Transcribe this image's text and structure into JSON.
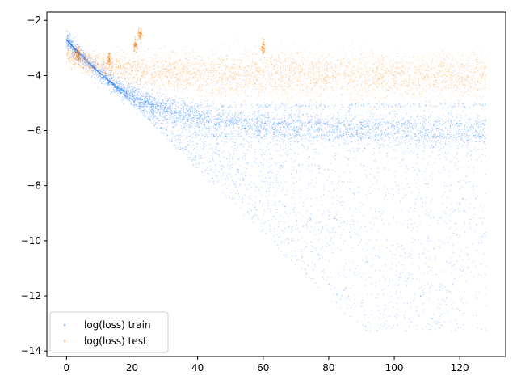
{
  "chart_data": {
    "type": "scatter",
    "title": "",
    "xlabel": "",
    "ylabel": "",
    "xlim": [
      -6,
      134
    ],
    "ylim": [
      -14.2,
      -1.7
    ],
    "xticks": [
      0,
      20,
      40,
      60,
      80,
      100,
      120
    ],
    "yticks": [
      -14,
      -12,
      -10,
      -8,
      -6,
      -4,
      -2
    ],
    "grid": false,
    "legend_position": "lower-left",
    "series": [
      {
        "name": "log(loss) train",
        "color": "#1f77ff",
        "x_range": [
          0,
          128
        ],
        "y_start": -2.7,
        "y_median_end": -6.0,
        "y_min_end": -13.3,
        "bands_y": [
          -5.1,
          -5.75,
          -6.2
        ]
      },
      {
        "name": "log(loss) test",
        "color": "#ff7f0e",
        "x_range": [
          0,
          128
        ],
        "y_start": -3.2,
        "y_center_end": -4.0,
        "y_spread_end": [
          -5.0,
          -3.1
        ],
        "spikes": [
          {
            "x": 21,
            "y": -2.9
          },
          {
            "x": 22.5,
            "y": -2.5
          },
          {
            "x": 60,
            "y": -3.0
          },
          {
            "x": 13,
            "y": -3.4
          },
          {
            "x": 3.5,
            "y": -3.2
          }
        ]
      }
    ]
  }
}
